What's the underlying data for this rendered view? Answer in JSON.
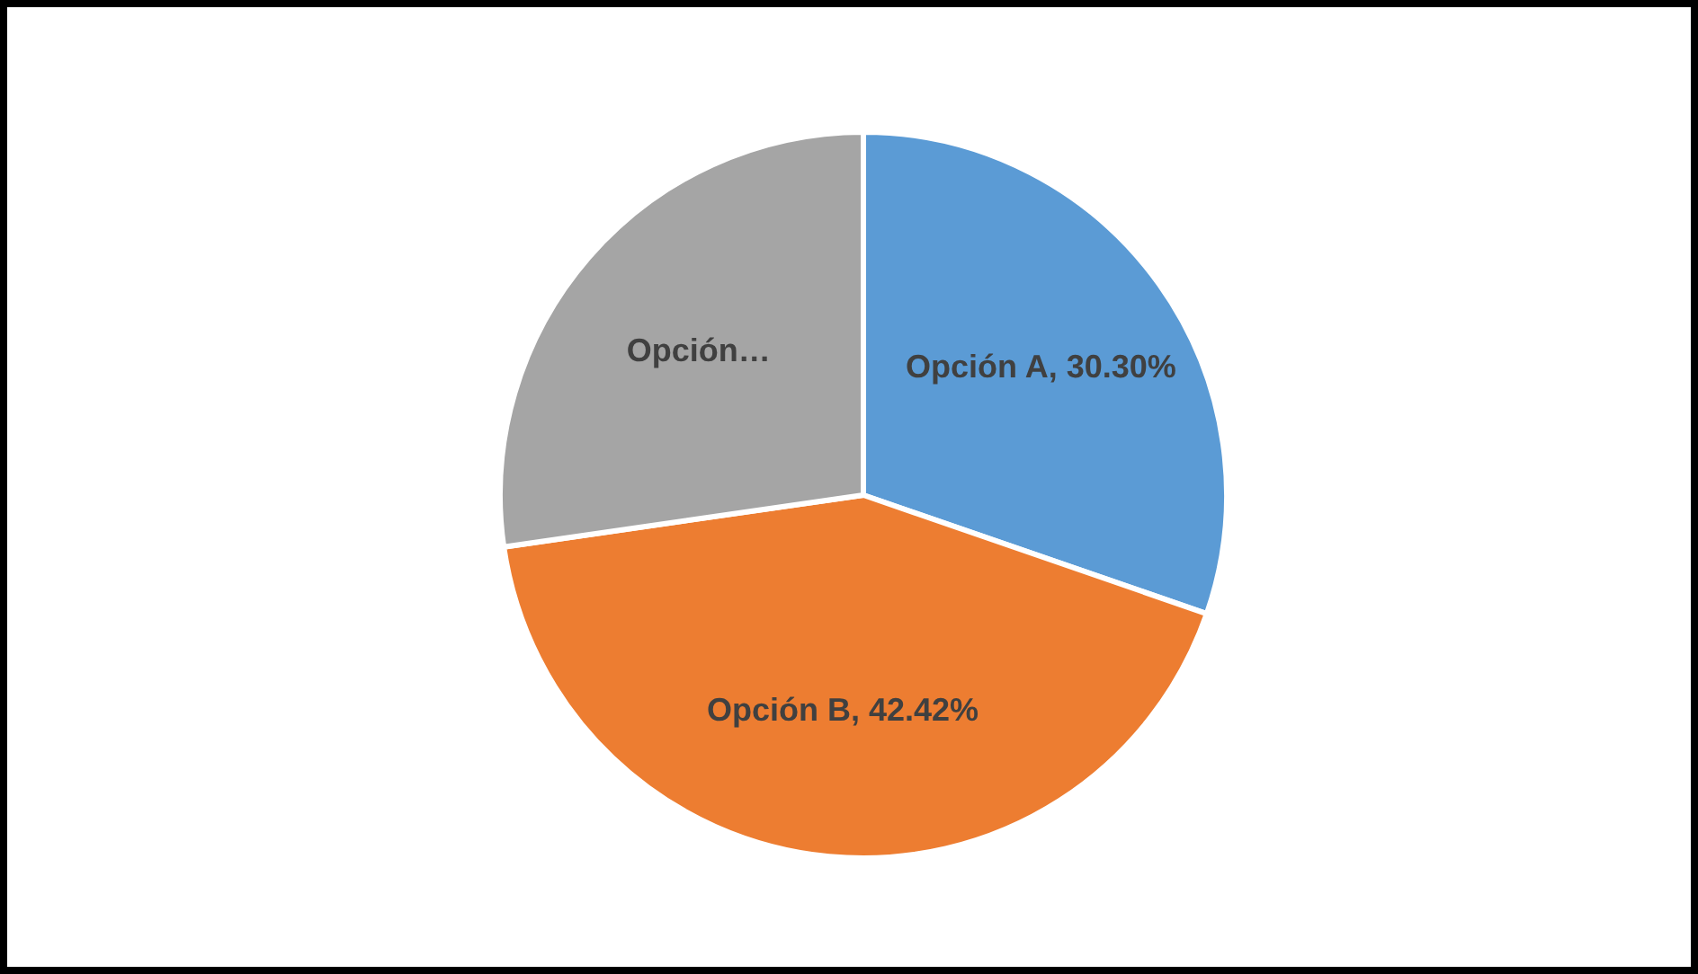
{
  "chart_data": {
    "type": "pie",
    "categories": [
      "Opción A",
      "Opción B",
      "Opción…"
    ],
    "values": [
      30.3,
      42.42,
      27.28
    ],
    "colors": [
      "#5b9bd5",
      "#ed7d31",
      "#a5a5a5"
    ],
    "value_labels": [
      "30.30%",
      "42.42%",
      null
    ],
    "legend": false
  }
}
